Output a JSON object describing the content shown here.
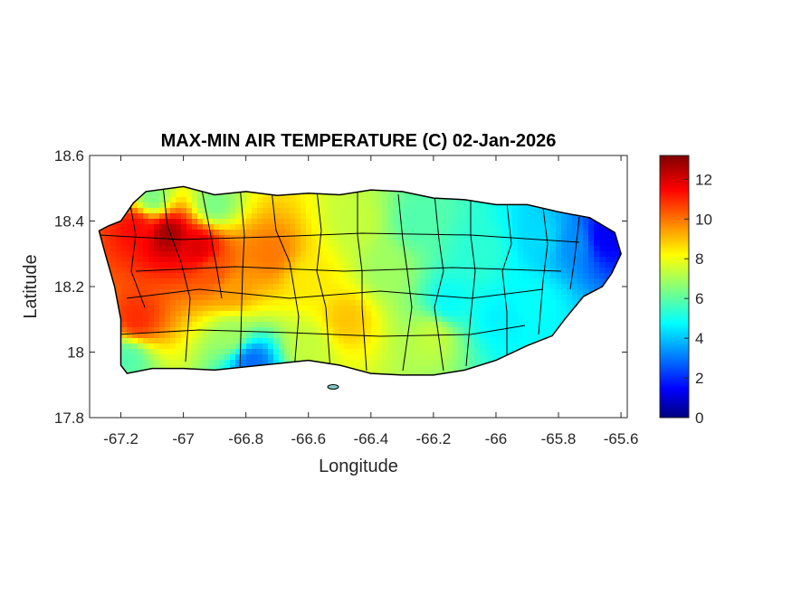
{
  "chart_data": {
    "type": "heatmap",
    "title": "MAX-MIN AIR TEMPERATURE (C) 02-Jan-2026",
    "xlabel": "Longitude",
    "ylabel": "Latitude",
    "xlim": [
      -67.3,
      -65.58
    ],
    "ylim": [
      17.8,
      18.6
    ],
    "x_ticks": [
      -67.2,
      -67,
      -66.8,
      -66.6,
      -66.4,
      -66.2,
      -66,
      -65.8,
      -65.6
    ],
    "x_tick_labels": [
      "-67.2",
      "-67",
      "-66.8",
      "-66.6",
      "-66.4",
      "-66.2",
      "-66",
      "-65.8",
      "-65.6"
    ],
    "y_ticks": [
      17.8,
      18,
      18.2,
      18.4,
      18.6
    ],
    "y_tick_labels": [
      "17.8",
      "18",
      "18.2",
      "18.4",
      "18.6"
    ],
    "colorbar": {
      "colormap": "jet",
      "range": [
        0,
        13.2
      ],
      "ticks": [
        0,
        2,
        4,
        6,
        8,
        10,
        12
      ],
      "tick_labels": [
        "0",
        "2",
        "4",
        "6",
        "8",
        "10",
        "12"
      ]
    },
    "coast": [
      [
        -67.27,
        18.37
      ],
      [
        -67.24,
        18.385
      ],
      [
        -67.2,
        18.4
      ],
      [
        -67.16,
        18.455
      ],
      [
        -67.12,
        18.49
      ],
      [
        -67.0,
        18.505
      ],
      [
        -66.9,
        18.48
      ],
      [
        -66.8,
        18.49
      ],
      [
        -66.7,
        18.478
      ],
      [
        -66.6,
        18.485
      ],
      [
        -66.5,
        18.48
      ],
      [
        -66.4,
        18.495
      ],
      [
        -66.3,
        18.49
      ],
      [
        -66.2,
        18.47
      ],
      [
        -66.1,
        18.465
      ],
      [
        -66.0,
        18.45
      ],
      [
        -65.9,
        18.45
      ],
      [
        -65.8,
        18.428
      ],
      [
        -65.7,
        18.41
      ],
      [
        -65.62,
        18.365
      ],
      [
        -65.6,
        18.3
      ],
      [
        -65.63,
        18.24
      ],
      [
        -65.66,
        18.2
      ],
      [
        -65.72,
        18.17
      ],
      [
        -65.78,
        18.1
      ],
      [
        -65.82,
        18.05
      ],
      [
        -65.9,
        18.02
      ],
      [
        -66.0,
        17.975
      ],
      [
        -66.1,
        17.945
      ],
      [
        -66.2,
        17.93
      ],
      [
        -66.3,
        17.93
      ],
      [
        -66.4,
        17.935
      ],
      [
        -66.5,
        17.96
      ],
      [
        -66.6,
        17.975
      ],
      [
        -66.7,
        17.965
      ],
      [
        -66.8,
        17.955
      ],
      [
        -66.9,
        17.945
      ],
      [
        -67.0,
        17.95
      ],
      [
        -67.1,
        17.95
      ],
      [
        -67.18,
        17.935
      ],
      [
        -67.2,
        17.96
      ],
      [
        -67.2,
        18.02
      ],
      [
        -67.2,
        18.1
      ],
      [
        -67.22,
        18.2
      ],
      [
        -67.25,
        18.3
      ]
    ],
    "temperature_field": [
      {
        "lon": -67.05,
        "lat": 18.36,
        "value": 12.8
      },
      {
        "lon": -66.95,
        "lat": 18.32,
        "value": 12.0
      },
      {
        "lon": -67.15,
        "lat": 18.38,
        "value": 11.5
      },
      {
        "lon": -66.9,
        "lat": 18.24,
        "value": 10.5
      },
      {
        "lon": -67.15,
        "lat": 18.1,
        "value": 11.0
      },
      {
        "lon": -66.72,
        "lat": 18.3,
        "value": 10.0
      },
      {
        "lon": -66.85,
        "lat": 18.19,
        "value": 9.5
      },
      {
        "lon": -66.6,
        "lat": 18.22,
        "value": 8.5
      },
      {
        "lon": -66.48,
        "lat": 18.1,
        "value": 9.0
      },
      {
        "lon": -66.45,
        "lat": 18.4,
        "value": 7.5
      },
      {
        "lon": -66.35,
        "lat": 18.25,
        "value": 7.0
      },
      {
        "lon": -66.25,
        "lat": 18.4,
        "value": 6.0
      },
      {
        "lon": -66.15,
        "lat": 18.15,
        "value": 5.0
      },
      {
        "lon": -66.2,
        "lat": 18.05,
        "value": 7.5
      },
      {
        "lon": -66.05,
        "lat": 18.3,
        "value": 5.5
      },
      {
        "lon": -65.98,
        "lat": 18.1,
        "value": 4.8
      },
      {
        "lon": -65.85,
        "lat": 18.35,
        "value": 4.5
      },
      {
        "lon": -65.75,
        "lat": 18.33,
        "value": 3.5
      },
      {
        "lon": -65.65,
        "lat": 18.35,
        "value": 1.5
      },
      {
        "lon": -65.88,
        "lat": 18.15,
        "value": 5.0
      },
      {
        "lon": -66.9,
        "lat": 18.45,
        "value": 6.5
      },
      {
        "lon": -67.1,
        "lat": 18.47,
        "value": 6.5
      },
      {
        "lon": -66.85,
        "lat": 18.05,
        "value": 7.0
      },
      {
        "lon": -66.78,
        "lat": 17.97,
        "value": 3.0
      },
      {
        "lon": -66.6,
        "lat": 18.02,
        "value": 7.5
      },
      {
        "lon": -67.18,
        "lat": 17.98,
        "value": 6.0
      }
    ],
    "grid": false
  }
}
